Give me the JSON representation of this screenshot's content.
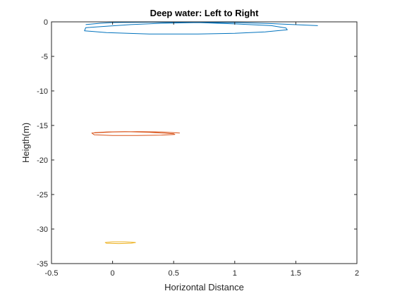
{
  "chart_data": {
    "type": "line",
    "title": "Deep water: Left to Right",
    "xlabel": "Horizontal Distance",
    "ylabel": "Heigth(m)",
    "xlim": [
      -0.5,
      2
    ],
    "ylim": [
      -35,
      0
    ],
    "xticks": [
      -0.5,
      0,
      0.5,
      1,
      1.5,
      2
    ],
    "xtick_labels": [
      "-0.5",
      "0",
      "0.5",
      "1",
      "1.5",
      "2"
    ],
    "yticks": [
      0,
      -5,
      -10,
      -15,
      -20,
      -25,
      -30,
      -35
    ],
    "ytick_labels": [
      "0",
      "-5",
      "-10",
      "-15",
      "-20",
      "-25",
      "-30",
      "-35"
    ],
    "grid": false,
    "legend": "none",
    "series": [
      {
        "color": "#0072BD",
        "x": [
          1.68,
          1.3,
          1.0,
          0.7,
          0.4,
          0.15,
          -0.22,
          -0.23,
          -0.05,
          0.3,
          0.7,
          1.0,
          1.25,
          1.43,
          1.42,
          1.3,
          1.0,
          0.7,
          0.3,
          0.0,
          -0.1,
          -0.22
        ],
        "y": [
          -0.55,
          -0.25,
          -0.1,
          -0.1,
          -0.2,
          -0.4,
          -0.85,
          -1.3,
          -1.55,
          -1.75,
          -1.75,
          -1.65,
          -1.45,
          -1.15,
          -0.9,
          -0.55,
          -0.3,
          -0.1,
          -0.05,
          -0.1,
          -0.2,
          -0.4
        ]
      },
      {
        "color": "#D95319",
        "x": [
          0.55,
          0.4,
          0.2,
          0.0,
          -0.17,
          -0.15,
          0.0,
          0.2,
          0.4,
          0.51,
          0.5,
          0.3,
          0.1,
          -0.05,
          -0.15
        ],
        "y": [
          -16.1,
          -15.95,
          -15.9,
          -15.95,
          -16.1,
          -16.35,
          -16.45,
          -16.45,
          -16.4,
          -16.3,
          -16.2,
          -16.0,
          -15.9,
          -15.95,
          -16.05
        ]
      },
      {
        "color": "#EDB120",
        "x": [
          0.19,
          0.1,
          0.0,
          -0.06,
          -0.05,
          0.05,
          0.15,
          0.19
        ],
        "y": [
          -31.95,
          -31.85,
          -31.85,
          -31.95,
          -32.05,
          -32.1,
          -32.05,
          -31.95
        ]
      }
    ]
  }
}
